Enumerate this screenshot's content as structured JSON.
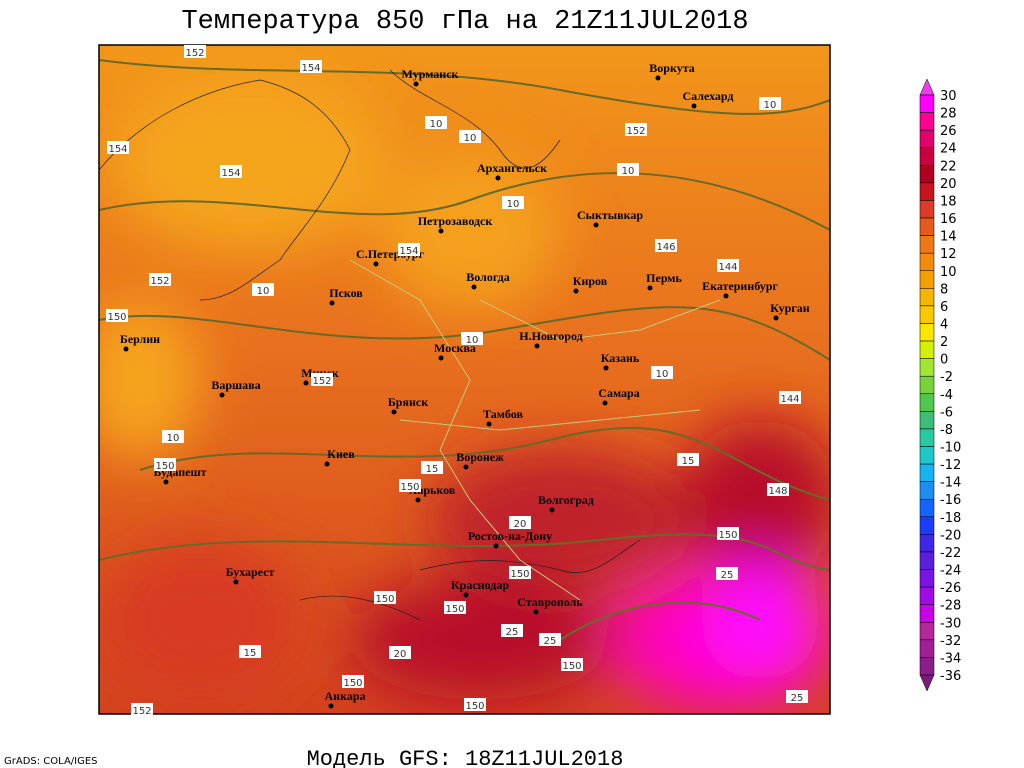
{
  "title": "Температура 850 гПа на 21Z11JUL2018",
  "subtitle": "Модель GFS: 18Z11JUL2018",
  "credit": "GrADS: COLA/IGES",
  "cities": [
    "Мурманск",
    "Воркута",
    "Салехард",
    "Архангельск",
    "Петрозаводск",
    "Сыктывкар",
    "С.Петербург",
    "Вологда",
    "Киров",
    "Пермь",
    "Екатеринбург",
    "Псков",
    "Курган",
    "Берлин",
    "Н.Новгород",
    "Москва",
    "Казань",
    "Минск",
    "Варшава",
    "Самара",
    "Брянск",
    "Тамбов",
    "Киев",
    "Воронеж",
    "Будапешт",
    "Харьков",
    "Волгоград",
    "Ростов-на-Дону",
    "Бухарест",
    "Краснодар",
    "Ставрополь",
    "Анкара"
  ],
  "contour_labels": [
    152,
    154,
    10,
    10,
    152,
    10,
    154,
    154,
    10,
    10,
    146,
    154,
    144,
    152,
    10,
    150,
    10,
    10,
    152,
    144,
    10,
    150,
    15,
    15,
    150,
    148,
    20,
    150,
    25,
    150,
    150,
    150,
    25,
    25,
    150,
    20,
    15,
    150,
    150,
    152,
    25
  ],
  "colorbar": {
    "levels": [
      30,
      28,
      26,
      24,
      22,
      20,
      18,
      16,
      14,
      12,
      10,
      8,
      6,
      4,
      2,
      0,
      -2,
      -4,
      -6,
      -8,
      -10,
      -12,
      -14,
      -16,
      -18,
      -20,
      -22,
      -24,
      -26,
      -28,
      -30,
      -32,
      -34,
      -36
    ],
    "colors": [
      "#f03cf0",
      "#ff00ff",
      "#ff0090",
      "#e0006e",
      "#c80040",
      "#b00020",
      "#c8141e",
      "#dc3c28",
      "#e65a1e",
      "#f07814",
      "#f08c0a",
      "#f5a000",
      "#f8b400",
      "#fac800",
      "#fae600",
      "#d2f000",
      "#a0e632",
      "#78d23c",
      "#50c850",
      "#3cbe78",
      "#28c8a0",
      "#1ec8c8",
      "#14b4f0",
      "#1e8cf0",
      "#1464ff",
      "#1e3cff",
      "#3c28e6",
      "#5a1edc",
      "#7814e6",
      "#a00ae6",
      "#c800e6",
      "#b4289b",
      "#a01e96",
      "#8c1e8c",
      "#7a1a7a"
    ]
  }
}
